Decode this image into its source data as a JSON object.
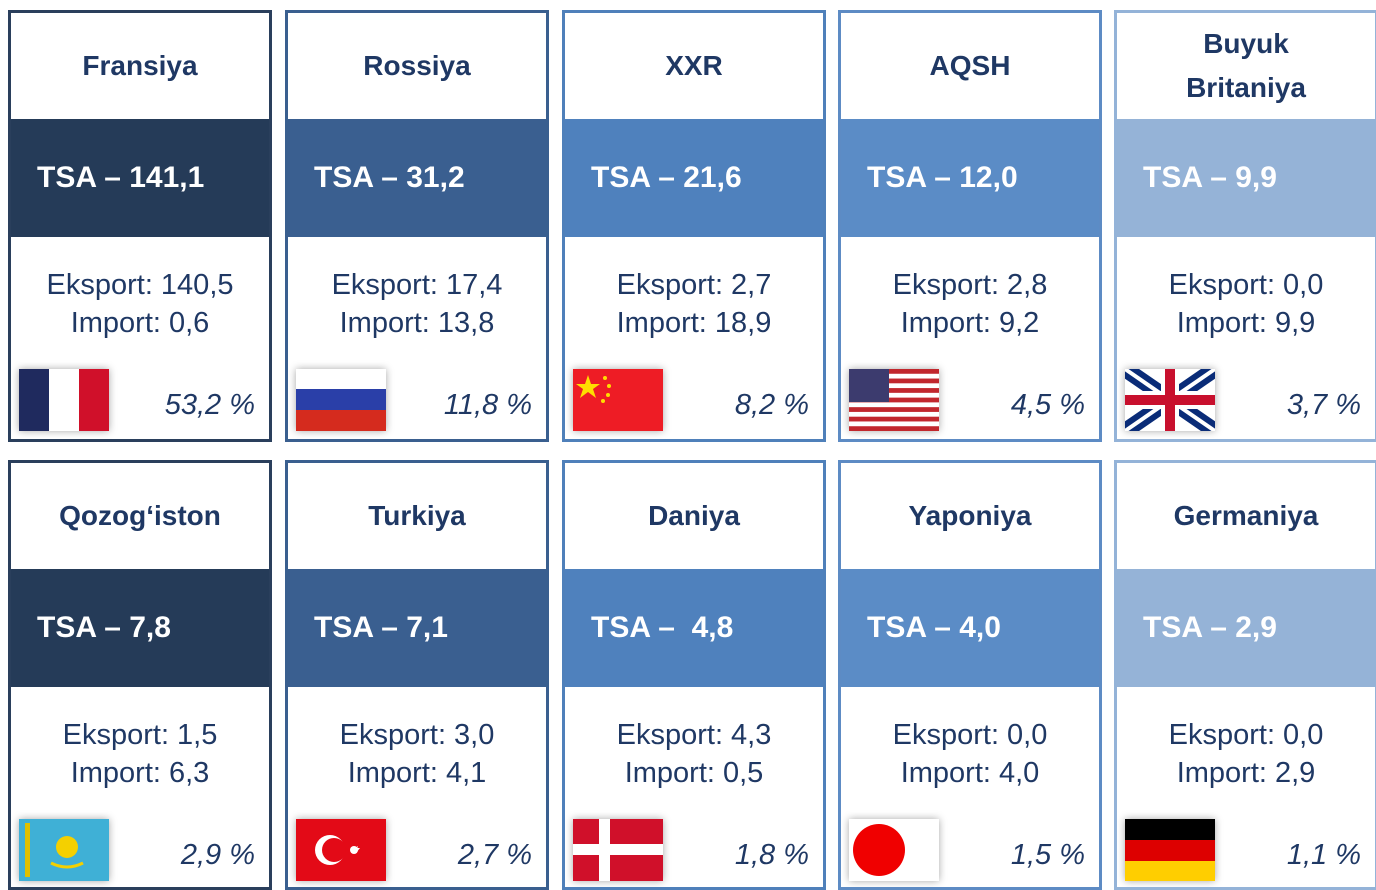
{
  "cards": [
    {
      "name": "Fransiya",
      "tsa": "TSA – 141,1",
      "eksport": "Eksport: 140,5",
      "import": "Import: 0,6",
      "share": "53,2 %"
    },
    {
      "name": "Rossiya",
      "tsa": "TSA – 31,2",
      "eksport": "Eksport: 17,4",
      "import": "Import: 13,8",
      "share": "11,8 %"
    },
    {
      "name": "XXR",
      "tsa": "TSA – 21,6",
      "eksport": "Eksport: 2,7",
      "import": "Import: 18,9",
      "share": "8,2 %"
    },
    {
      "name": "AQSH",
      "tsa": "TSA – 12,0",
      "eksport": "Eksport: 2,8",
      "import": "Import: 9,2",
      "share": "4,5 %"
    },
    {
      "name": "Buyuk Britaniya",
      "tsa": "TSA – 9,9",
      "eksport": "Eksport: 0,0",
      "import": "Import: 9,9",
      "share": "3,7 %"
    },
    {
      "name": "Qozog‘iston",
      "tsa": "TSA – 7,8",
      "eksport": "Eksport: 1,5",
      "import": "Import: 6,3",
      "share": "2,9 %"
    },
    {
      "name": "Turkiya",
      "tsa": "TSA – 7,1",
      "eksport": "Eksport: 3,0",
      "import": "Import: 4,1",
      "share": "2,7 %"
    },
    {
      "name": "Daniya",
      "tsa": "TSA –  4,8",
      "eksport": "Eksport: 4,3",
      "import": "Import: 0,5",
      "share": "1,8 %"
    },
    {
      "name": "Yaponiya",
      "tsa": "TSA – 4,0",
      "eksport": "Eksport: 0,0",
      "import": "Import: 4,0",
      "share": "1,5 %"
    },
    {
      "name": "Germaniya",
      "tsa": "TSA – 2,9",
      "eksport": "Eksport: 0,0",
      "import": "Import: 2,9",
      "share": "1,1 %"
    }
  ]
}
